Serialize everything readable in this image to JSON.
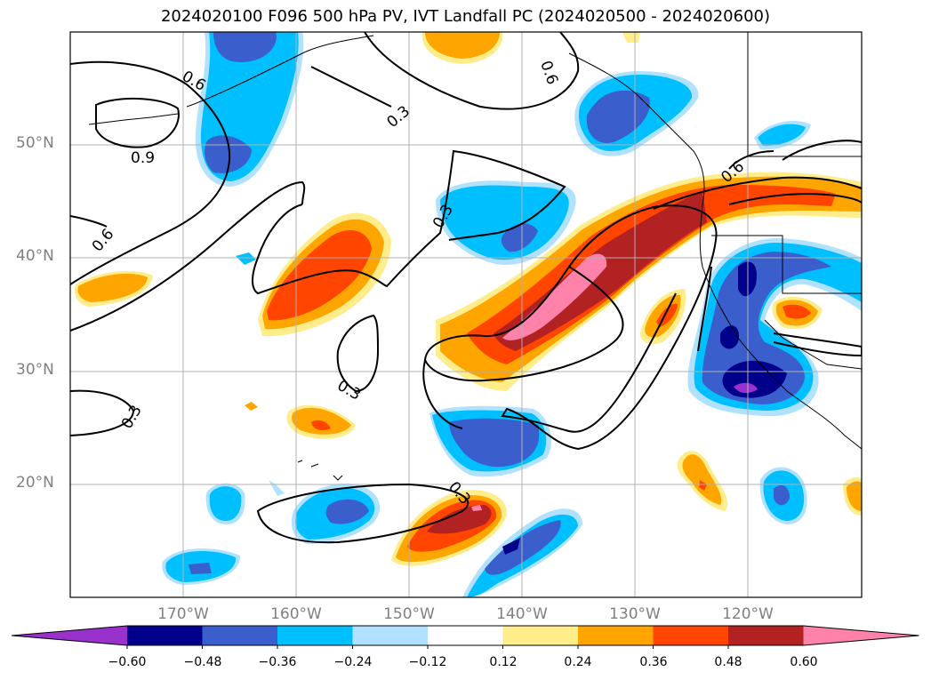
{
  "title": "2024020100 F096 500 hPa PV, IVT Landfall PC (2024020500 - 2024020600)",
  "map": {
    "projection": "PlateCarree",
    "lon_range": [
      -180,
      -110
    ],
    "lat_range": [
      10,
      60
    ],
    "gridlines": true,
    "lat_labels": [
      "50°N",
      "40°N",
      "30°N",
      "20°N"
    ],
    "lon_labels": [
      "170°W",
      "160°W",
      "150°W",
      "140°W",
      "130°W",
      "120°W"
    ],
    "contour_labels": [
      "0.6",
      "0.9",
      "0.6",
      "0.3",
      "0.6",
      "0.3",
      "0.6",
      "0.3",
      "0.3",
      "0.3"
    ]
  },
  "colorbar": {
    "extend": "both",
    "colors": [
      "#9932CC",
      "#00008B",
      "#3A5FCD",
      "#00BFFF",
      "#B0E2FF",
      "#FFFFFF",
      "#FFEC8B",
      "#FFA500",
      "#FF4500",
      "#B22222",
      "#FF82AB"
    ],
    "ticks": [
      "−0.60",
      "−0.48",
      "−0.36",
      "−0.24",
      "−0.12",
      "0.12",
      "0.24",
      "0.36",
      "0.48",
      "0.60"
    ]
  }
}
